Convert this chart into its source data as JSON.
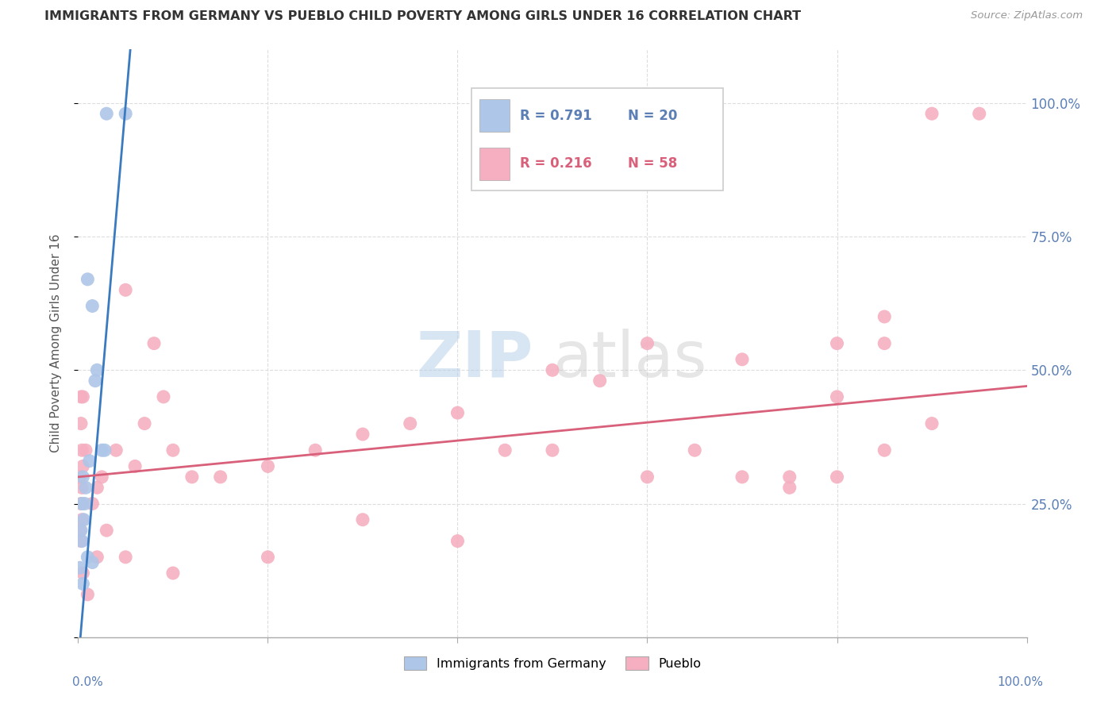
{
  "title": "IMMIGRANTS FROM GERMANY VS PUEBLO CHILD POVERTY AMONG GIRLS UNDER 16 CORRELATION CHART",
  "source": "Source: ZipAtlas.com",
  "ylabel": "Child Poverty Among Girls Under 16",
  "legend_blue_r": "R = 0.791",
  "legend_blue_n": "N = 20",
  "legend_pink_r": "R = 0.216",
  "legend_pink_n": "N = 58",
  "blue_color": "#aec6e8",
  "pink_color": "#f5afc0",
  "blue_line_color": "#3a7abf",
  "pink_line_color": "#d9607a",
  "label_color": "#5b7fb5",
  "title_color": "#333333",
  "source_color": "#999999",
  "grid_color": "#dddddd",
  "blue_scatter_x": [
    0.5,
    1.5,
    2.5,
    0.3,
    0.5,
    0.6,
    0.8,
    1.2,
    1.8,
    0.2,
    0.7,
    3.0,
    5.0,
    1.0,
    0.4,
    1.0,
    2.0,
    0.4,
    2.8,
    1.5
  ],
  "blue_scatter_y": [
    10,
    62,
    35,
    20,
    30,
    22,
    28,
    33,
    48,
    13,
    25,
    98,
    98,
    67,
    18,
    15,
    50,
    25,
    35,
    14
  ],
  "pink_scatter_x": [
    0.2,
    0.3,
    0.4,
    0.3,
    0.4,
    0.5,
    0.5,
    0.3,
    1.5,
    2.0,
    2.5,
    4.0,
    5.0,
    7.0,
    9.0,
    10.0,
    15.0,
    20.0,
    25.0,
    30.0,
    35.0,
    40.0,
    45.0,
    50.0,
    55.0,
    60.0,
    65.0,
    70.0,
    75.0,
    80.0,
    85.0,
    90.0,
    95.0,
    85.0,
    80.0,
    75.0,
    70.0,
    60.0,
    50.0,
    40.0,
    30.0,
    20.0,
    10.0,
    5.0,
    3.0,
    2.0,
    1.0,
    0.5,
    0.8,
    0.2,
    0.3,
    0.4,
    12.0,
    6.0,
    8.0,
    90.0,
    85.0,
    80.0
  ],
  "pink_scatter_y": [
    30,
    40,
    35,
    45,
    28,
    45,
    32,
    25,
    25,
    28,
    30,
    35,
    65,
    40,
    45,
    35,
    30,
    32,
    35,
    38,
    40,
    42,
    35,
    50,
    48,
    30,
    35,
    30,
    28,
    45,
    35,
    40,
    98,
    55,
    55,
    30,
    52,
    55,
    35,
    18,
    22,
    15,
    12,
    15,
    20,
    15,
    8,
    12,
    35,
    20,
    18,
    22,
    30,
    32,
    55,
    98,
    60,
    30
  ],
  "blue_line_x": [
    0.0,
    5.5
  ],
  "blue_line_y": [
    -5,
    110
  ],
  "pink_line_x": [
    0,
    100
  ],
  "pink_line_y": [
    30,
    47
  ],
  "xlim": [
    0,
    100
  ],
  "ylim": [
    0,
    110
  ],
  "yticks": [
    0,
    25,
    50,
    75,
    100
  ],
  "ytick_labels_right": [
    "",
    "25.0%",
    "50.0%",
    "75.0%",
    "100.0%"
  ],
  "xtick_positions": [
    0,
    20,
    40,
    60,
    80,
    100
  ],
  "watermark_zip": "ZIP",
  "watermark_atlas": "atlas",
  "legend_label_blue": "Immigrants from Germany",
  "legend_label_pink": "Pueblo"
}
